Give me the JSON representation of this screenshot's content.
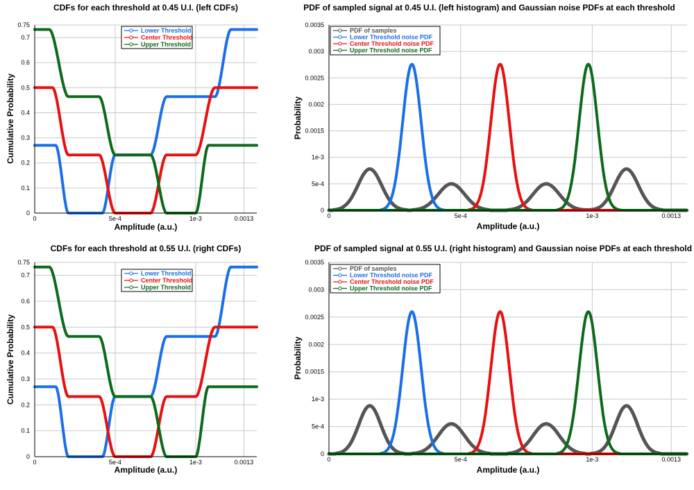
{
  "chart_data": [
    {
      "type": "line",
      "title": "CDFs for each threshold at 0.45 U.I. (left CDFs)",
      "xlabel": "Amplitude (a.u.)",
      "ylabel": "Cumulative Probability",
      "xlim": [
        0,
        0.00138
      ],
      "ylim": [
        0,
        0.75
      ],
      "x_ticks": [
        {
          "v": 0,
          "label": "0"
        },
        {
          "v": 0.0005,
          "label": "5e-4"
        },
        {
          "v": 0.001,
          "label": "1e-3"
        },
        {
          "v": 0.0013,
          "label": "0.0013"
        }
      ],
      "y_ticks": [
        {
          "v": 0,
          "label": "0"
        },
        {
          "v": 0.1,
          "label": "0.1"
        },
        {
          "v": 0.2,
          "label": "0.2"
        },
        {
          "v": 0.3,
          "label": "0.3"
        },
        {
          "v": 0.4,
          "label": "0.4"
        },
        {
          "v": 0.5,
          "label": "0.5"
        },
        {
          "v": 0.6,
          "label": "0.6"
        },
        {
          "v": 0.7,
          "label": "0.7"
        },
        {
          "v": 0.75,
          "label": "0.75"
        }
      ],
      "grid": true,
      "legend_position": "top-center",
      "series": [
        {
          "name": "Lower Threshold",
          "color": "#1a6fe8",
          "x": [
            0,
            0.00013,
            0.00021,
            0.00042,
            0.0005,
            0.00072,
            0.00082,
            0.00112,
            0.00122,
            0.00138
          ],
          "values": [
            0.27,
            0.27,
            0.0,
            0.0,
            0.232,
            0.232,
            0.464,
            0.464,
            0.732,
            0.732
          ]
        },
        {
          "name": "Center Threshold",
          "color": "#e81010",
          "x": [
            0,
            0.00011,
            0.00021,
            0.0004,
            0.0005,
            0.00072,
            0.00082,
            0.001,
            0.00112,
            0.00138
          ],
          "values": [
            0.5,
            0.5,
            0.232,
            0.232,
            0.0,
            0.0,
            0.232,
            0.232,
            0.5,
            0.5
          ]
        },
        {
          "name": "Upper Threshold",
          "color": "#0d6a1a",
          "x": [
            0,
            9e-05,
            0.00021,
            0.0004,
            0.0005,
            0.00072,
            0.00082,
            0.001,
            0.00108,
            0.00138
          ],
          "values": [
            0.732,
            0.732,
            0.464,
            0.464,
            0.232,
            0.232,
            0.0,
            0.0,
            0.27,
            0.27
          ]
        }
      ]
    },
    {
      "type": "line",
      "title": "PDF of sampled signal at 0.45 U.I. (left histogram) and Gaussian noise PDFs at each threshold",
      "xlabel": "Amplitude (a.u.)",
      "ylabel": "Probability",
      "xlim": [
        0,
        0.00136
      ],
      "ylim": [
        0,
        0.0035
      ],
      "x_ticks": [
        {
          "v": 0,
          "label": "0"
        },
        {
          "v": 0.0005,
          "label": "5e-4"
        },
        {
          "v": 0.001,
          "label": "1e-3"
        },
        {
          "v": 0.0013,
          "label": "0.0013"
        }
      ],
      "y_ticks": [
        {
          "v": 0,
          "label": "0"
        },
        {
          "v": 0.0005,
          "label": "5e-4"
        },
        {
          "v": 0.001,
          "label": "1e-3"
        },
        {
          "v": 0.0015,
          "label": "0.0015"
        },
        {
          "v": 0.002,
          "label": "0.002"
        },
        {
          "v": 0.0025,
          "label": "0.0025"
        },
        {
          "v": 0.003,
          "label": "0.003"
        },
        {
          "v": 0.0035,
          "label": "0.0035"
        }
      ],
      "grid": true,
      "legend_position": "top-left",
      "series": [
        {
          "name": "PDF of samples",
          "color": "#555555",
          "peaks": [
            {
              "x": 0.000155,
              "peak": 0.00078,
              "width": 4.5e-05
            },
            {
              "x": 0.000465,
              "peak": 0.0005,
              "width": 5e-05
            },
            {
              "x": 0.000825,
              "peak": 0.0005,
              "width": 5e-05
            },
            {
              "x": 0.00113,
              "peak": 0.00078,
              "width": 4.5e-05
            }
          ]
        },
        {
          "name": "Lower Threshold noise PDF",
          "color": "#1a6fe8",
          "peaks": [
            {
              "x": 0.000315,
              "peak": 0.00276,
              "width": 3.5e-05
            }
          ]
        },
        {
          "name": "Center Threshold noise PDF",
          "color": "#e81010",
          "peaks": [
            {
              "x": 0.00065,
              "peak": 0.00276,
              "width": 3.5e-05
            }
          ]
        },
        {
          "name": "Upper Threshold  noise PDF",
          "color": "#0d6a1a",
          "peaks": [
            {
              "x": 0.000985,
              "peak": 0.00276,
              "width": 3.5e-05
            }
          ]
        }
      ]
    },
    {
      "type": "line",
      "title": "CDFs for each threshold at 0.55 U.I. (right CDFs)",
      "xlabel": "Amplitude (a.u.)",
      "ylabel": "Cumulative Probability",
      "xlim": [
        0,
        0.00138
      ],
      "ylim": [
        0,
        0.75
      ],
      "x_ticks": [
        {
          "v": 0,
          "label": "0"
        },
        {
          "v": 0.0005,
          "label": "5e-4"
        },
        {
          "v": 0.001,
          "label": "1e-3"
        },
        {
          "v": 0.0013,
          "label": "0.0013"
        }
      ],
      "y_ticks": [
        {
          "v": 0,
          "label": "0"
        },
        {
          "v": 0.1,
          "label": "0.1"
        },
        {
          "v": 0.2,
          "label": "0.2"
        },
        {
          "v": 0.3,
          "label": "0.3"
        },
        {
          "v": 0.4,
          "label": "0.4"
        },
        {
          "v": 0.5,
          "label": "0.5"
        },
        {
          "v": 0.6,
          "label": "0.6"
        },
        {
          "v": 0.7,
          "label": "0.7"
        },
        {
          "v": 0.75,
          "label": "0.75"
        }
      ],
      "grid": true,
      "legend_position": "top-center",
      "series": [
        {
          "name": "Lower Threshold",
          "color": "#1a6fe8",
          "x": [
            0,
            0.00013,
            0.00021,
            0.00042,
            0.0005,
            0.00072,
            0.00082,
            0.00112,
            0.00122,
            0.00138
          ],
          "values": [
            0.27,
            0.27,
            0.0,
            0.0,
            0.232,
            0.232,
            0.464,
            0.464,
            0.732,
            0.732
          ]
        },
        {
          "name": "Center Threshold",
          "color": "#e81010",
          "x": [
            0,
            0.00011,
            0.00021,
            0.0004,
            0.0005,
            0.00072,
            0.00082,
            0.001,
            0.00112,
            0.00138
          ],
          "values": [
            0.5,
            0.5,
            0.232,
            0.232,
            0.0,
            0.0,
            0.232,
            0.232,
            0.5,
            0.5
          ]
        },
        {
          "name": "Upper Threshold",
          "color": "#0d6a1a",
          "x": [
            0,
            9e-05,
            0.00021,
            0.0004,
            0.0005,
            0.00072,
            0.00082,
            0.001,
            0.00108,
            0.00138
          ],
          "values": [
            0.732,
            0.732,
            0.464,
            0.464,
            0.232,
            0.232,
            0.0,
            0.0,
            0.27,
            0.27
          ]
        }
      ]
    },
    {
      "type": "line",
      "title": "PDF of sampled signal at 0.55 U.I. (right histogram) and Gaussian noise PDFs at each threshold",
      "xlabel": "Amplitude (a.u.)",
      "ylabel": "Probability",
      "xlim": [
        0,
        0.00136
      ],
      "ylim": [
        0,
        0.0035
      ],
      "x_ticks": [
        {
          "v": 0,
          "label": "0"
        },
        {
          "v": 0.0005,
          "label": "5e-4"
        },
        {
          "v": 0.001,
          "label": "1e-3"
        },
        {
          "v": 0.0013,
          "label": "0.0013"
        }
      ],
      "y_ticks": [
        {
          "v": 0,
          "label": "0"
        },
        {
          "v": 0.0005,
          "label": "5e-4"
        },
        {
          "v": 0.001,
          "label": "1e-3"
        },
        {
          "v": 0.0015,
          "label": "0.0015"
        },
        {
          "v": 0.002,
          "label": "0.002"
        },
        {
          "v": 0.0025,
          "label": "0.0025"
        },
        {
          "v": 0.003,
          "label": "0.003"
        },
        {
          "v": 0.0035,
          "label": "0.0035"
        }
      ],
      "grid": true,
      "legend_position": "top-left",
      "series": [
        {
          "name": "PDF of samples",
          "color": "#555555",
          "peaks": [
            {
              "x": 0.000155,
              "peak": 0.00088,
              "width": 4.2e-05
            },
            {
              "x": 0.000465,
              "peak": 0.00055,
              "width": 5e-05
            },
            {
              "x": 0.000825,
              "peak": 0.00055,
              "width": 5e-05
            },
            {
              "x": 0.00113,
              "peak": 0.00088,
              "width": 4.2e-05
            }
          ]
        },
        {
          "name": "Lower Threshold noise PDF",
          "color": "#1a6fe8",
          "peaks": [
            {
              "x": 0.000315,
              "peak": 0.0026,
              "width": 3.5e-05
            }
          ]
        },
        {
          "name": "Center Threshold noise PDF",
          "color": "#e81010",
          "peaks": [
            {
              "x": 0.00065,
              "peak": 0.0026,
              "width": 3.5e-05
            }
          ]
        },
        {
          "name": "Upper Threshold noise PDF",
          "color": "#0d6a1a",
          "peaks": [
            {
              "x": 0.000985,
              "peak": 0.0026,
              "width": 3.5e-05
            }
          ]
        }
      ]
    }
  ]
}
